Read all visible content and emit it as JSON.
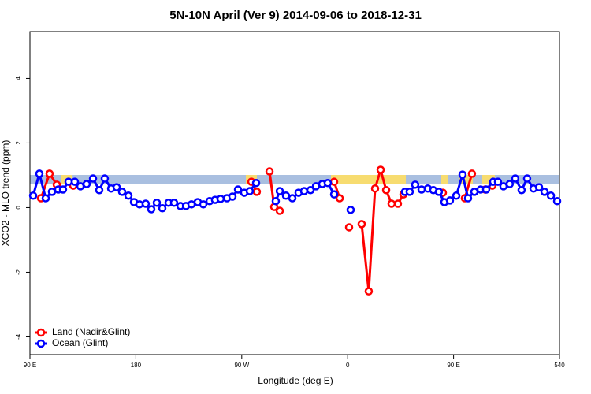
{
  "chart_data": {
    "type": "line",
    "title": "5N-10N April (Ver 9)   2014-09-06 to 2018-12-31",
    "x_label": "Longitude (deg E)",
    "y_label": "XCO2 - MLO trend (ppm)",
    "xlim": [
      90,
      540
    ],
    "xticks": [
      {
        "value": 90,
        "label": "90 E"
      },
      180,
      {
        "value": 270,
        "label": "90 W"
      },
      {
        "value": 360,
        "label": "0"
      },
      {
        "value": 450,
        "label": "90 E"
      },
      540
    ],
    "ylim": [
      -4.55,
      5.45
    ],
    "yticks": [
      -4,
      -2,
      0,
      2,
      4
    ],
    "legend": "bottom-left",
    "series": [
      {
        "name": "Land (Nadir&Glint)",
        "color": "#ff0000",
        "x": [
          99.4,
          106.7,
          112.8,
          null,
          126.8,
          null,
          278.2,
          282.8,
          null,
          293.6,
          297.6,
          302.3,
          null,
          348.5,
          353.2,
          null,
          361.2,
          null,
          371.9,
          377.9,
          383.3,
          388.0,
          392.7,
          397.3,
          402.7,
          407.4,
          null,
          440.9,
          null,
          459.6,
          465.6,
          null,
          477.0,
          483.0
        ],
        "values": [
          0.29,
          1.05,
          0.71,
          null,
          0.68,
          null,
          0.8,
          0.49,
          null,
          1.12,
          0.02,
          -0.1,
          null,
          0.8,
          0.29,
          null,
          -0.61,
          null,
          -0.51,
          -2.59,
          0.59,
          1.17,
          0.54,
          0.12,
          0.12,
          0.41,
          null,
          0.46,
          null,
          0.29,
          1.05,
          null,
          0.56,
          0.68
        ]
      },
      {
        "name": "Ocean (Glint)",
        "color": "#0000ff",
        "x": [
          92.7,
          98.0,
          103.4,
          108.7,
          114.1,
          118.1,
          122.8,
          128.2,
          132.9,
          138.2,
          143.6,
          148.9,
          153.6,
          159.0,
          163.7,
          168.3,
          173.7,
          178.4,
          183.1,
          188.4,
          193.1,
          197.8,
          202.5,
          207.8,
          212.5,
          217.9,
          222.6,
          227.3,
          232.6,
          237.3,
          242.7,
          247.3,
          252.0,
          257.4,
          262.1,
          266.8,
          272.1,
          276.8,
          282.2,
          null,
          298.9,
          302.3,
          307.6,
          313.0,
          318.3,
          323.0,
          328.4,
          333.1,
          338.4,
          343.1,
          348.5,
          null,
          362.5,
          null,
          408.7,
          412.7,
          417.4,
          422.8,
          428.1,
          432.8,
          437.5,
          442.2,
          446.9,
          452.3,
          457.6,
          462.3,
          467.7,
          473.0,
          477.7,
          483.7,
          487.7,
          492.4,
          497.7,
          502.4,
          507.8,
          512.5,
          517.9,
          522.6,
          527.3,
          532.7,
          538.0
        ],
        "values": [
          0.37,
          1.05,
          0.29,
          0.49,
          0.56,
          0.56,
          0.8,
          0.8,
          0.66,
          0.73,
          0.9,
          0.54,
          0.9,
          0.59,
          0.63,
          0.49,
          0.37,
          0.17,
          0.1,
          0.12,
          -0.05,
          0.15,
          -0.02,
          0.15,
          0.15,
          0.05,
          0.05,
          0.1,
          0.17,
          0.1,
          0.2,
          0.24,
          0.27,
          0.29,
          0.34,
          0.56,
          0.46,
          0.51,
          0.76,
          null,
          0.2,
          0.51,
          0.37,
          0.29,
          0.46,
          0.51,
          0.54,
          0.66,
          0.73,
          0.76,
          0.41,
          null,
          -0.07,
          null,
          0.49,
          0.49,
          0.71,
          0.56,
          0.59,
          0.54,
          0.49,
          0.17,
          0.22,
          0.37,
          1.02,
          0.29,
          0.49,
          0.56,
          0.56,
          0.8,
          0.8,
          0.66,
          0.73,
          0.9,
          0.54,
          0.9,
          0.59,
          0.63,
          0.49,
          0.37,
          0.2
        ]
      }
    ]
  }
}
